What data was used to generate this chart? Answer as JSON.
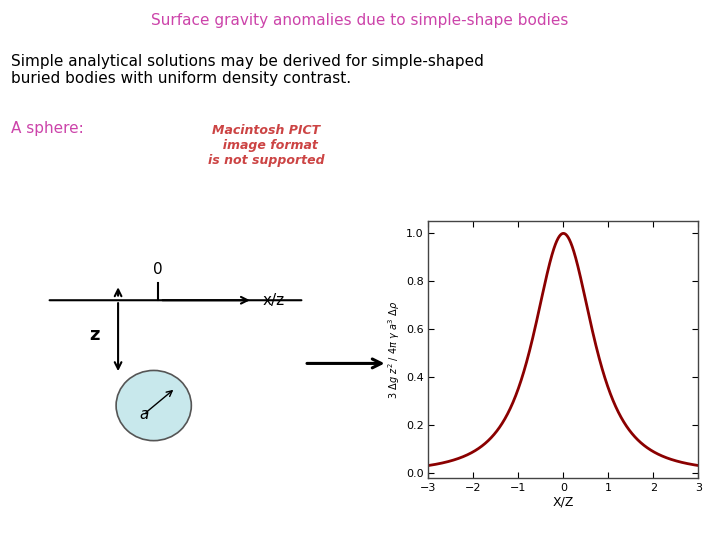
{
  "title": "Surface gravity anomalies due to simple-shape bodies",
  "title_color": "#cc44aa",
  "title_fontsize": 11,
  "body_text": "Simple analytical solutions may be derived for simple-shaped\nburied bodies with uniform density contrast.",
  "body_fontsize": 11,
  "sphere_label": "A sphere:",
  "sphere_label_color": "#cc44aa",
  "sphere_label_fontsize": 11,
  "pict_text": "Macintosh PICT\n  image format\nis not supported",
  "pict_color": "#cc4444",
  "plot_xlabel": "X/Z",
  "plot_ylabel": "3 Δg z² / 4π γ a³ Δρ",
  "plot_xlim": [
    -3,
    3
  ],
  "plot_ylim": [
    0.0,
    1.0
  ],
  "plot_yticks": [
    0.0,
    0.2,
    0.4,
    0.6,
    0.8,
    1.0
  ],
  "plot_xticks": [
    -3,
    -2,
    -1,
    0,
    1,
    2,
    3
  ],
  "line_color": "#8b0000",
  "line_width": 2.0,
  "background_color": "#ffffff",
  "diagram_line_color": "#000000",
  "sphere_face_color": "#c8e8ec",
  "sphere_edge_color": "#555555"
}
